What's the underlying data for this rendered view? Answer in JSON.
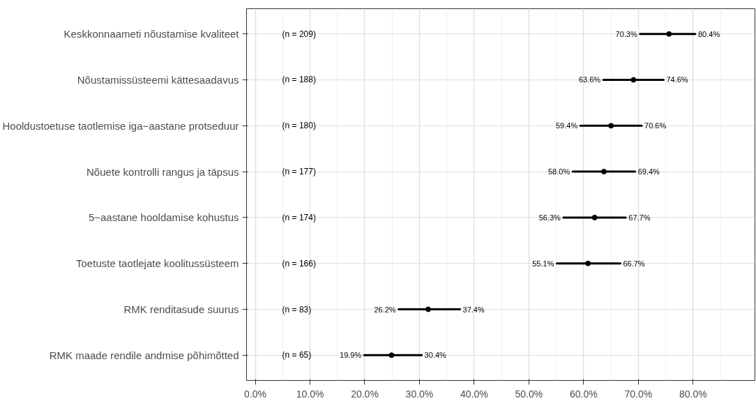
{
  "chart_data": {
    "type": "scatter",
    "orientation": "horizontal",
    "categories": [
      "Keskkonnaameti nõustamise kvaliteet",
      "Nõustamissüsteemi kättesaadavus",
      "Hooldustoetuse taotlemise iga−aastane protseduur",
      "Nõuete kontrolli rangus ja täpsus",
      "5−aastane hooldamise kohustus",
      "Toetuste taotlejate koolitussüsteem",
      "RMK renditasude suurus",
      "RMK maade rendile andmise põhimõtted"
    ],
    "values": [
      75.6,
      69.1,
      65.0,
      63.7,
      62.0,
      60.8,
      31.6,
      24.9
    ],
    "errors": [
      [
        70.3,
        80.4
      ],
      [
        63.6,
        74.6
      ],
      [
        59.4,
        70.6
      ],
      [
        58.0,
        69.4
      ],
      [
        56.3,
        67.7
      ],
      [
        55.1,
        66.7
      ],
      [
        26.2,
        37.4
      ],
      [
        19.9,
        30.4
      ]
    ],
    "color": "#000000",
    "marker": "circle",
    "grid": true,
    "xlim": [
      -1.6,
      91.3
    ],
    "xticks": [
      {
        "value": 0,
        "label": "0.0%"
      },
      {
        "value": 10,
        "label": "10.0%"
      },
      {
        "value": 20,
        "label": "20.0%"
      },
      {
        "value": 30,
        "label": "30.0%"
      },
      {
        "value": 40,
        "label": "40.0%"
      },
      {
        "value": 50,
        "label": "50.0%"
      },
      {
        "value": 60,
        "label": "60.0%"
      },
      {
        "value": 70,
        "label": "70.0%"
      },
      {
        "value": 80,
        "label": "80.0%"
      }
    ],
    "annotations": [
      "(n = 209)",
      "(n = 188)",
      "(n = 180)",
      "(n = 177)",
      "(n = 174)",
      "(n = 166)",
      "(n = 83)",
      "(n = 65)",
      "70.3%",
      "80.4%",
      "63.6%",
      "74.6%",
      "59.4%",
      "70.6%",
      "58.0%",
      "69.4%",
      "56.3%",
      "67.7%",
      "55.1%",
      "66.7%",
      "26.2%",
      "37.4%",
      "19.9%",
      "30.4%"
    ]
  }
}
